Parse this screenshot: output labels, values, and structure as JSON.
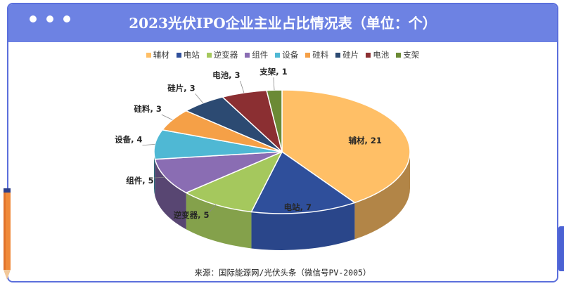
{
  "window": {
    "title": "2023光伏IPO企业主业占比情况表（单位：个）",
    "source": "来源：国际能源网/光伏头条（微信号PV-2005）"
  },
  "chart_data": {
    "type": "pie",
    "title": "2023光伏IPO企业主业占比情况表（单位：个）",
    "legend_position": "top",
    "series": [
      {
        "name": "辅材",
        "value": 21,
        "color": "#ffbf66"
      },
      {
        "name": "电站",
        "value": 7,
        "color": "#2f4f9b"
      },
      {
        "name": "逆变器",
        "value": 5,
        "color": "#a5c85d"
      },
      {
        "name": "组件",
        "value": 5,
        "color": "#8a6db3"
      },
      {
        "name": "设备",
        "value": 4,
        "color": "#4fb8d4"
      },
      {
        "name": "硅料",
        "value": 3,
        "color": "#f5a047"
      },
      {
        "name": "硅片",
        "value": 3,
        "color": "#2c4a72"
      },
      {
        "name": "电池",
        "value": 3,
        "color": "#8b2f32"
      },
      {
        "name": "支架",
        "value": 1,
        "color": "#6b8a35"
      }
    ]
  }
}
